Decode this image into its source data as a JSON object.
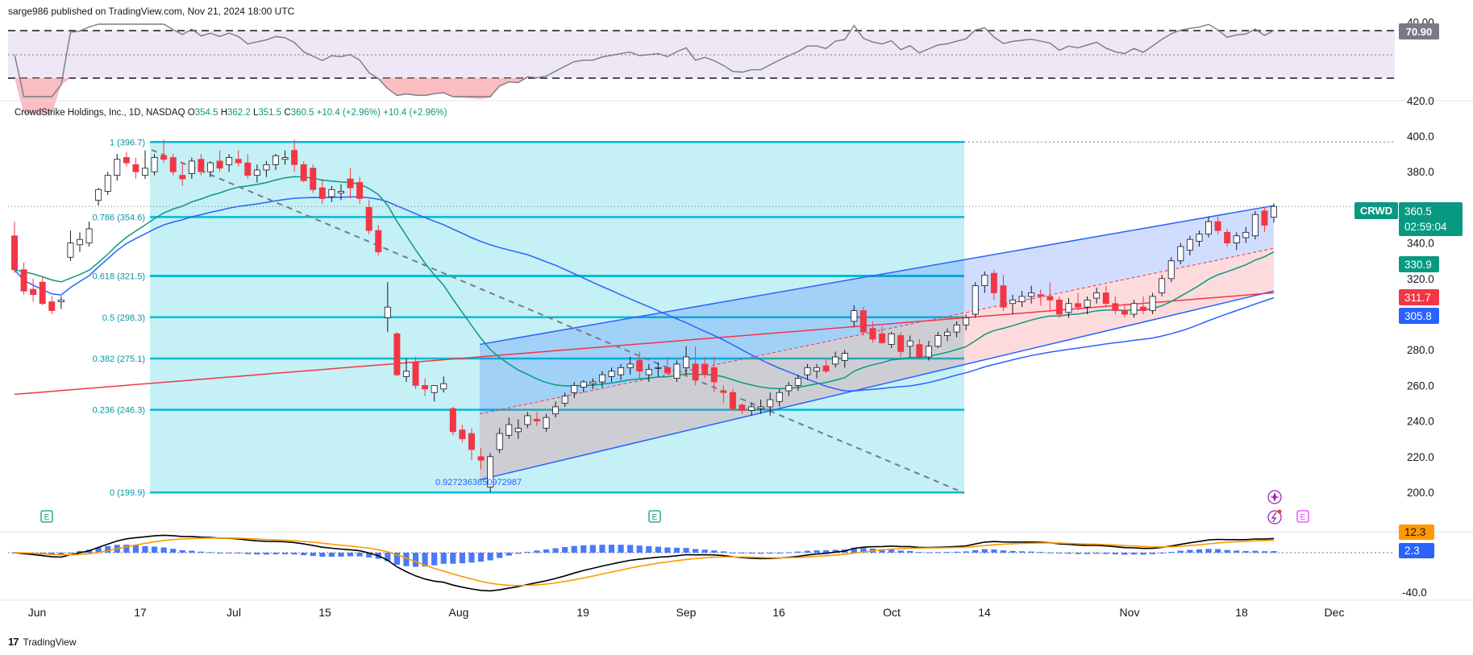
{
  "header": {
    "published_by": "sarge986 published on TradingView.com, Nov 21, 2024 18:00 UTC"
  },
  "legend": {
    "name": "CrowdStrike Holdings, Inc., 1D, NASDAQ",
    "o_label": "O",
    "o": "354.5",
    "h_label": "H",
    "h": "362.2",
    "l_label": "L",
    "l": "351.5",
    "c_label": "C",
    "c": "360.5",
    "change": "+10.4 (+2.96%)",
    "change2": "+10.4 (+2.96%)"
  },
  "footer": {
    "brand": "TradingView",
    "logo": "17"
  },
  "colors": {
    "up": "#089981",
    "down": "#f23645",
    "fib": "#00bcd4",
    "fib_fill": "#b2ebf2",
    "ema_fast": "#089981",
    "sma_mid": "#2962ff",
    "sma_long": "#f23645",
    "channel_blue": "#2962ff",
    "channel_red": "#f23645",
    "macd": "#000000",
    "signal": "#ff9800",
    "hist": "#2962ff",
    "rsi": "#7e57c2",
    "rsi_line": "#787b86"
  },
  "chart_data": {
    "type": "candlestick",
    "symbol": "CRWD",
    "price_axis_ticks": [
      "420.0",
      "400.0",
      "380.0",
      "360.0",
      "340.0",
      "320.0",
      "300.0",
      "280.0",
      "260.0",
      "240.0",
      "220.0",
      "200.0"
    ],
    "rsi_axis_ticks": [
      "40.00"
    ],
    "macd_axis_ticks": [
      "-40.0"
    ],
    "x_ticks": [
      "Jun",
      "17",
      "Jul",
      "15",
      "Aug",
      "19",
      "Sep",
      "16",
      "Oct",
      "14",
      "Nov",
      "18",
      "Dec"
    ],
    "price_labels": {
      "last": "360.5",
      "countdown": "02:59:04",
      "symbol": "CRWD",
      "ema": "330.9",
      "sma_long": "311.7",
      "sma_mid": "305.8",
      "rsi_value": "70.90",
      "macd": "12.3",
      "macd_hist": "2.3"
    },
    "fib_levels": [
      {
        "ratio": "1",
        "price": 396.7,
        "label": "1 (396.7)"
      },
      {
        "ratio": "0.786",
        "price": 354.6,
        "label": "0.786 (354.6)"
      },
      {
        "ratio": "0.618",
        "price": 321.5,
        "label": "0.618 (321.5)"
      },
      {
        "ratio": "0.5",
        "price": 298.3,
        "label": "0.5 (298.3)"
      },
      {
        "ratio": "0.382",
        "price": 275.1,
        "label": "0.382 (275.1)"
      },
      {
        "ratio": "0.236",
        "price": 246.3,
        "label": "0.236 (246.3)"
      },
      {
        "ratio": "0",
        "price": 199.9,
        "label": "0 (199.9)"
      }
    ],
    "channel_note": "0.9272363850972987",
    "candles": [
      {
        "d": "2024-05-28",
        "o": 344,
        "h": 352,
        "l": 323,
        "c": 325
      },
      {
        "d": "2024-05-29",
        "o": 325,
        "h": 329,
        "l": 311,
        "c": 313
      },
      {
        "d": "2024-05-30",
        "o": 314,
        "h": 320,
        "l": 307,
        "c": 311
      },
      {
        "d": "2024-05-31",
        "o": 318,
        "h": 321,
        "l": 305,
        "c": 306
      },
      {
        "d": "2024-06-03",
        "o": 307,
        "h": 310,
        "l": 300,
        "c": 302
      },
      {
        "d": "2024-06-04",
        "o": 307,
        "h": 310,
        "l": 303,
        "c": 308
      },
      {
        "d": "2024-06-05",
        "o": 332,
        "h": 347,
        "l": 330,
        "c": 340
      },
      {
        "d": "2024-06-06",
        "o": 339,
        "h": 346,
        "l": 335,
        "c": 342
      },
      {
        "d": "2024-06-07",
        "o": 340,
        "h": 352,
        "l": 338,
        "c": 348
      },
      {
        "d": "2024-06-10",
        "o": 364,
        "h": 371,
        "l": 361,
        "c": 370
      },
      {
        "d": "2024-06-11",
        "o": 369,
        "h": 380,
        "l": 367,
        "c": 378
      },
      {
        "d": "2024-06-12",
        "o": 378,
        "h": 390,
        "l": 375,
        "c": 387
      },
      {
        "d": "2024-06-13",
        "o": 388,
        "h": 391,
        "l": 383,
        "c": 385
      },
      {
        "d": "2024-06-14",
        "o": 384,
        "h": 388,
        "l": 376,
        "c": 380
      },
      {
        "d": "2024-06-17",
        "o": 378,
        "h": 392,
        "l": 376,
        "c": 382
      },
      {
        "d": "2024-06-18",
        "o": 380,
        "h": 390,
        "l": 378,
        "c": 388
      },
      {
        "d": "2024-06-20",
        "o": 389,
        "h": 398,
        "l": 385,
        "c": 387
      },
      {
        "d": "2024-06-21",
        "o": 388,
        "h": 390,
        "l": 378,
        "c": 380
      },
      {
        "d": "2024-06-24",
        "o": 378,
        "h": 385,
        "l": 372,
        "c": 376
      },
      {
        "d": "2024-06-25",
        "o": 379,
        "h": 388,
        "l": 376,
        "c": 386
      },
      {
        "d": "2024-06-26",
        "o": 387,
        "h": 390,
        "l": 378,
        "c": 380
      },
      {
        "d": "2024-06-27",
        "o": 380,
        "h": 386,
        "l": 377,
        "c": 385
      },
      {
        "d": "2024-06-28",
        "o": 386,
        "h": 392,
        "l": 380,
        "c": 382
      },
      {
        "d": "2024-07-01",
        "o": 384,
        "h": 390,
        "l": 380,
        "c": 388
      },
      {
        "d": "2024-07-02",
        "o": 387,
        "h": 392,
        "l": 383,
        "c": 385
      },
      {
        "d": "2024-07-03",
        "o": 385,
        "h": 390,
        "l": 376,
        "c": 378
      },
      {
        "d": "2024-07-05",
        "o": 378,
        "h": 384,
        "l": 374,
        "c": 381
      },
      {
        "d": "2024-07-08",
        "o": 381,
        "h": 386,
        "l": 377,
        "c": 384
      },
      {
        "d": "2024-07-09",
        "o": 384,
        "h": 390,
        "l": 381,
        "c": 389
      },
      {
        "d": "2024-07-10",
        "o": 387,
        "h": 392,
        "l": 384,
        "c": 388
      },
      {
        "d": "2024-07-11",
        "o": 392,
        "h": 398,
        "l": 380,
        "c": 384
      },
      {
        "d": "2024-07-12",
        "o": 384,
        "h": 386,
        "l": 374,
        "c": 375
      },
      {
        "d": "2024-07-15",
        "o": 382,
        "h": 384,
        "l": 368,
        "c": 370
      },
      {
        "d": "2024-07-16",
        "o": 371,
        "h": 376,
        "l": 362,
        "c": 365
      },
      {
        "d": "2024-07-17",
        "o": 366,
        "h": 372,
        "l": 363,
        "c": 370
      },
      {
        "d": "2024-07-18",
        "o": 368,
        "h": 373,
        "l": 364,
        "c": 369
      },
      {
        "d": "2024-07-19",
        "o": 376,
        "h": 382,
        "l": 365,
        "c": 371
      },
      {
        "d": "2024-07-22",
        "o": 374,
        "h": 377,
        "l": 362,
        "c": 365
      },
      {
        "d": "2024-07-23",
        "o": 360,
        "h": 364,
        "l": 345,
        "c": 347
      },
      {
        "d": "2024-07-24",
        "o": 347,
        "h": 350,
        "l": 333,
        "c": 335
      },
      {
        "d": "2024-07-25",
        "o": 298,
        "h": 318,
        "l": 290,
        "c": 304
      },
      {
        "d": "2024-07-26",
        "o": 289,
        "h": 290,
        "l": 265,
        "c": 266
      },
      {
        "d": "2024-07-29",
        "o": 265,
        "h": 275,
        "l": 262,
        "c": 268
      },
      {
        "d": "2024-07-30",
        "o": 273,
        "h": 276,
        "l": 258,
        "c": 260
      },
      {
        "d": "2024-07-31",
        "o": 260,
        "h": 264,
        "l": 254,
        "c": 258
      },
      {
        "d": "2024-08-01",
        "o": 256,
        "h": 260,
        "l": 251,
        "c": 260
      },
      {
        "d": "2024-08-02",
        "o": 258,
        "h": 265,
        "l": 256,
        "c": 261
      },
      {
        "d": "2024-08-05",
        "o": 247,
        "h": 248,
        "l": 232,
        "c": 234
      },
      {
        "d": "2024-08-06",
        "o": 235,
        "h": 238,
        "l": 228,
        "c": 230
      },
      {
        "d": "2024-08-07",
        "o": 233,
        "h": 236,
        "l": 218,
        "c": 224
      },
      {
        "d": "2024-08-08",
        "o": 220,
        "h": 225,
        "l": 213,
        "c": 218
      },
      {
        "d": "2024-08-09",
        "o": 203,
        "h": 222,
        "l": 200,
        "c": 220
      },
      {
        "d": "2024-08-12",
        "o": 224,
        "h": 236,
        "l": 222,
        "c": 233
      },
      {
        "d": "2024-08-13",
        "o": 232,
        "h": 242,
        "l": 230,
        "c": 238
      },
      {
        "d": "2024-08-14",
        "o": 234,
        "h": 241,
        "l": 230,
        "c": 236
      },
      {
        "d": "2024-08-15",
        "o": 238,
        "h": 245,
        "l": 236,
        "c": 243
      },
      {
        "d": "2024-08-16",
        "o": 241,
        "h": 245,
        "l": 237,
        "c": 240
      },
      {
        "d": "2024-08-19",
        "o": 236,
        "h": 244,
        "l": 234,
        "c": 242
      },
      {
        "d": "2024-08-20",
        "o": 244,
        "h": 251,
        "l": 242,
        "c": 248
      },
      {
        "d": "2024-08-21",
        "o": 250,
        "h": 256,
        "l": 248,
        "c": 254
      },
      {
        "d": "2024-08-22",
        "o": 256,
        "h": 262,
        "l": 253,
        "c": 260
      },
      {
        "d": "2024-08-23",
        "o": 259,
        "h": 263,
        "l": 256,
        "c": 262
      },
      {
        "d": "2024-08-26",
        "o": 261,
        "h": 264,
        "l": 258,
        "c": 262
      },
      {
        "d": "2024-08-27",
        "o": 262,
        "h": 268,
        "l": 259,
        "c": 266
      },
      {
        "d": "2024-08-28",
        "o": 265,
        "h": 270,
        "l": 262,
        "c": 268
      },
      {
        "d": "2024-08-29",
        "o": 266,
        "h": 272,
        "l": 263,
        "c": 270
      },
      {
        "d": "2024-08-30",
        "o": 270,
        "h": 276,
        "l": 266,
        "c": 272
      },
      {
        "d": "2024-09-03",
        "o": 274,
        "h": 279,
        "l": 264,
        "c": 268
      },
      {
        "d": "2024-09-04",
        "o": 266,
        "h": 272,
        "l": 262,
        "c": 269
      },
      {
        "d": "2024-09-05",
        "o": 270,
        "h": 273,
        "l": 265,
        "c": 270
      },
      {
        "d": "2024-09-06",
        "o": 270,
        "h": 276,
        "l": 266,
        "c": 267
      },
      {
        "d": "2024-09-09",
        "o": 264,
        "h": 274,
        "l": 262,
        "c": 272
      },
      {
        "d": "2024-09-10",
        "o": 270,
        "h": 282,
        "l": 266,
        "c": 276
      },
      {
        "d": "2024-09-11",
        "o": 272,
        "h": 282,
        "l": 260,
        "c": 263
      },
      {
        "d": "2024-09-12",
        "o": 272,
        "h": 276,
        "l": 264,
        "c": 266
      },
      {
        "d": "2024-09-13",
        "o": 270,
        "h": 276,
        "l": 256,
        "c": 262
      },
      {
        "d": "2024-09-16",
        "o": 257,
        "h": 260,
        "l": 250,
        "c": 256
      },
      {
        "d": "2024-09-17",
        "o": 256,
        "h": 258,
        "l": 246,
        "c": 247
      },
      {
        "d": "2024-09-18",
        "o": 249,
        "h": 250,
        "l": 244,
        "c": 246
      },
      {
        "d": "2024-09-19",
        "o": 246,
        "h": 250,
        "l": 243,
        "c": 248
      },
      {
        "d": "2024-09-20",
        "o": 247,
        "h": 252,
        "l": 244,
        "c": 248
      },
      {
        "d": "2024-09-23",
        "o": 248,
        "h": 256,
        "l": 243,
        "c": 252
      },
      {
        "d": "2024-09-24",
        "o": 251,
        "h": 258,
        "l": 248,
        "c": 256
      },
      {
        "d": "2024-09-25",
        "o": 257,
        "h": 262,
        "l": 254,
        "c": 260
      },
      {
        "d": "2024-09-26",
        "o": 260,
        "h": 266,
        "l": 257,
        "c": 264
      },
      {
        "d": "2024-09-27",
        "o": 266,
        "h": 272,
        "l": 263,
        "c": 270
      },
      {
        "d": "2024-09-30",
        "o": 268,
        "h": 272,
        "l": 264,
        "c": 270
      },
      {
        "d": "2024-10-01",
        "o": 271,
        "h": 275,
        "l": 267,
        "c": 268
      },
      {
        "d": "2024-10-02",
        "o": 272,
        "h": 279,
        "l": 270,
        "c": 276
      },
      {
        "d": "2024-10-03",
        "o": 274,
        "h": 280,
        "l": 270,
        "c": 278
      },
      {
        "d": "2024-10-04",
        "o": 296,
        "h": 305,
        "l": 293,
        "c": 302
      },
      {
        "d": "2024-10-07",
        "o": 302,
        "h": 304,
        "l": 288,
        "c": 290
      },
      {
        "d": "2024-10-08",
        "o": 292,
        "h": 296,
        "l": 284,
        "c": 286
      },
      {
        "d": "2024-10-09",
        "o": 289,
        "h": 293,
        "l": 283,
        "c": 284
      },
      {
        "d": "2024-10-10",
        "o": 283,
        "h": 290,
        "l": 281,
        "c": 289
      },
      {
        "d": "2024-10-11",
        "o": 288,
        "h": 290,
        "l": 276,
        "c": 279
      },
      {
        "d": "2024-10-14",
        "o": 282,
        "h": 288,
        "l": 276,
        "c": 285
      },
      {
        "d": "2024-10-15",
        "o": 283,
        "h": 286,
        "l": 275,
        "c": 276
      },
      {
        "d": "2024-10-16",
        "o": 276,
        "h": 285,
        "l": 274,
        "c": 282
      },
      {
        "d": "2024-10-17",
        "o": 282,
        "h": 290,
        "l": 281,
        "c": 288
      },
      {
        "d": "2024-10-18",
        "o": 288,
        "h": 292,
        "l": 285,
        "c": 290
      },
      {
        "d": "2024-10-21",
        "o": 290,
        "h": 296,
        "l": 287,
        "c": 294
      },
      {
        "d": "2024-10-22",
        "o": 294,
        "h": 300,
        "l": 291,
        "c": 298
      },
      {
        "d": "2024-10-23",
        "o": 300,
        "h": 318,
        "l": 298,
        "c": 316
      },
      {
        "d": "2024-10-24",
        "o": 316,
        "h": 324,
        "l": 312,
        "c": 322
      },
      {
        "d": "2024-10-25",
        "o": 323,
        "h": 325,
        "l": 308,
        "c": 312
      },
      {
        "d": "2024-10-28",
        "o": 316,
        "h": 322,
        "l": 302,
        "c": 304
      },
      {
        "d": "2024-10-29",
        "o": 306,
        "h": 311,
        "l": 300,
        "c": 308
      },
      {
        "d": "2024-10-30",
        "o": 307,
        "h": 313,
        "l": 304,
        "c": 310
      },
      {
        "d": "2024-10-31",
        "o": 310,
        "h": 316,
        "l": 306,
        "c": 312
      },
      {
        "d": "2024-11-01",
        "o": 311,
        "h": 314,
        "l": 305,
        "c": 310
      },
      {
        "d": "2024-11-04",
        "o": 310,
        "h": 318,
        "l": 302,
        "c": 308
      },
      {
        "d": "2024-11-05",
        "o": 308,
        "h": 310,
        "l": 298,
        "c": 300
      },
      {
        "d": "2024-11-06",
        "o": 301,
        "h": 309,
        "l": 298,
        "c": 306
      },
      {
        "d": "2024-11-07",
        "o": 306,
        "h": 312,
        "l": 302,
        "c": 304
      },
      {
        "d": "2024-11-08",
        "o": 304,
        "h": 310,
        "l": 300,
        "c": 308
      },
      {
        "d": "2024-11-11",
        "o": 309,
        "h": 315,
        "l": 306,
        "c": 312
      },
      {
        "d": "2024-11-12",
        "o": 312,
        "h": 316,
        "l": 304,
        "c": 306
      },
      {
        "d": "2024-11-13",
        "o": 306,
        "h": 310,
        "l": 300,
        "c": 302
      },
      {
        "d": "2024-11-14",
        "o": 302,
        "h": 306,
        "l": 298,
        "c": 300
      },
      {
        "d": "2024-11-15",
        "o": 300,
        "h": 308,
        "l": 298,
        "c": 306
      },
      {
        "d": "2024-11-18",
        "o": 304,
        "h": 310,
        "l": 300,
        "c": 302
      },
      {
        "d": "2024-11-19",
        "o": 302,
        "h": 312,
        "l": 300,
        "c": 310
      },
      {
        "d": "2024-11-20",
        "o": 312,
        "h": 322,
        "l": 310,
        "c": 320
      },
      {
        "d": "2024-11-21",
        "o": 320,
        "h": 332,
        "l": 318,
        "c": 330
      },
      {
        "d": "2024-11-22",
        "o": 330,
        "h": 340,
        "l": 328,
        "c": 338
      },
      {
        "d": "2024-11-25",
        "o": 336,
        "h": 344,
        "l": 333,
        "c": 342
      },
      {
        "d": "2024-11-26",
        "o": 341,
        "h": 347,
        "l": 338,
        "c": 345
      },
      {
        "d": "2024-11-27",
        "o": 345,
        "h": 355,
        "l": 343,
        "c": 352
      },
      {
        "d": "2024-11-29",
        "o": 352,
        "h": 355,
        "l": 345,
        "c": 347
      },
      {
        "d": "2024-12-02",
        "o": 346,
        "h": 348,
        "l": 338,
        "c": 340
      },
      {
        "d": "2024-12-03",
        "o": 340,
        "h": 346,
        "l": 336,
        "c": 344
      },
      {
        "d": "2024-12-04",
        "o": 343,
        "h": 349,
        "l": 340,
        "c": 346
      },
      {
        "d": "2024-12-05",
        "o": 344,
        "h": 358,
        "l": 342,
        "c": 356
      },
      {
        "d": "2024-12-06",
        "o": 358,
        "h": 360,
        "l": 346,
        "c": 350
      },
      {
        "d": "2024-12-09",
        "o": 354.5,
        "h": 362.2,
        "l": 351.5,
        "c": 360.5
      }
    ]
  }
}
